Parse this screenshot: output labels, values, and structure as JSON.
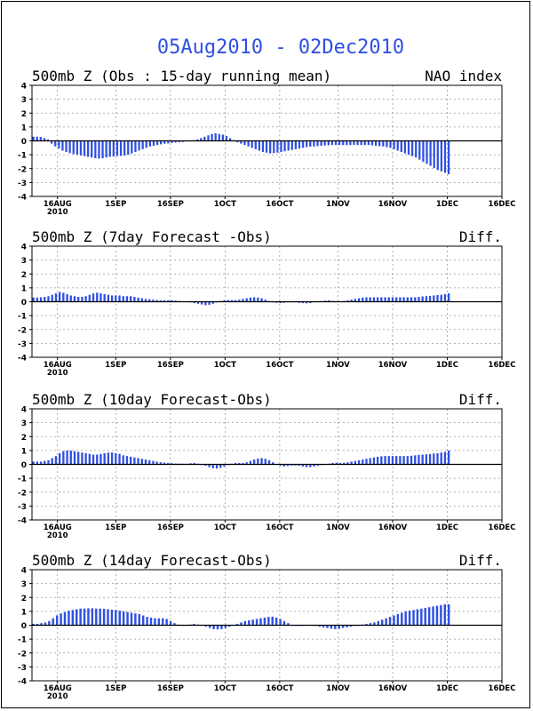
{
  "title": "05Aug2010 - 02Dec2010",
  "colors": {
    "bar": "#3050e0",
    "title": "#3050e0",
    "axis": "#000000",
    "grid": "#999999"
  },
  "chart_data": [
    {
      "type": "bar",
      "title": "500mb Z (Obs : 15-day running mean)",
      "right_label": "NAO index",
      "ylim": [
        -4,
        4
      ],
      "yticks": [
        "4",
        "3",
        "2",
        "1",
        "0",
        "-1",
        "-2",
        "-3",
        "-4"
      ],
      "xticks": [
        "16AUG",
        "1SEP",
        "16SEP",
        "1OCT",
        "16OCT",
        "1NOV",
        "16NOV",
        "1DEC",
        "16DEC"
      ],
      "xtick_year": "2010",
      "grid": true,
      "values": [
        0.3,
        0.3,
        0.28,
        0.2,
        0.1,
        -0.2,
        -0.4,
        -0.55,
        -0.7,
        -0.8,
        -0.88,
        -0.95,
        -1,
        -1.05,
        -1.1,
        -1.15,
        -1.2,
        -1.25,
        -1.28,
        -1.25,
        -1.2,
        -1.15,
        -1.12,
        -1.1,
        -1.08,
        -1.05,
        -1,
        -0.9,
        -0.8,
        -0.7,
        -0.6,
        -0.5,
        -0.4,
        -0.35,
        -0.3,
        -0.25,
        -0.2,
        -0.18,
        -0.15,
        -0.12,
        -0.1,
        -0.08,
        -0.05,
        0,
        0.05,
        0.1,
        0.2,
        0.3,
        0.4,
        0.5,
        0.55,
        0.5,
        0.45,
        0.35,
        0.2,
        0.05,
        -0.1,
        -0.2,
        -0.3,
        -0.4,
        -0.5,
        -0.6,
        -0.7,
        -0.8,
        -0.85,
        -0.9,
        -0.88,
        -0.85,
        -0.8,
        -0.75,
        -0.7,
        -0.65,
        -0.6,
        -0.55,
        -0.5,
        -0.45,
        -0.42,
        -0.4,
        -0.38,
        -0.35,
        -0.33,
        -0.32,
        -0.3,
        -0.3,
        -0.3,
        -0.3,
        -0.3,
        -0.3,
        -0.3,
        -0.3,
        -0.3,
        -0.3,
        -0.3,
        -0.32,
        -0.35,
        -0.38,
        -0.4,
        -0.45,
        -0.5,
        -0.6,
        -0.7,
        -0.8,
        -0.9,
        -1,
        -1.1,
        -1.2,
        -1.35,
        -1.5,
        -1.65,
        -1.8,
        -1.95,
        -2.1,
        -2.2,
        -2.3,
        -2.4
      ]
    },
    {
      "type": "bar",
      "title": "500mb Z (7day Forecast -Obs)",
      "right_label": "Diff.",
      "ylim": [
        -4,
        4
      ],
      "yticks": [
        "4",
        "3",
        "2",
        "1",
        "0",
        "-1",
        "-2",
        "-3",
        "-4"
      ],
      "xticks": [
        "16AUG",
        "1SEP",
        "16SEP",
        "1OCT",
        "16OCT",
        "1NOV",
        "16NOV",
        "1DEC",
        "16DEC"
      ],
      "xtick_year": "2010",
      "grid": true,
      "values": [
        0.3,
        0.3,
        0.32,
        0.35,
        0.4,
        0.5,
        0.6,
        0.7,
        0.65,
        0.55,
        0.45,
        0.4,
        0.35,
        0.35,
        0.4,
        0.5,
        0.6,
        0.65,
        0.6,
        0.55,
        0.5,
        0.45,
        0.45,
        0.45,
        0.4,
        0.4,
        0.4,
        0.35,
        0.3,
        0.25,
        0.2,
        0.18,
        0.15,
        0.12,
        0.1,
        0.1,
        0.1,
        0.1,
        0.08,
        0.05,
        0.02,
        -0.02,
        -0.05,
        -0.1,
        -0.15,
        -0.2,
        -0.25,
        -0.22,
        -0.15,
        -0.05,
        0.05,
        0.1,
        0.12,
        0.12,
        0.12,
        0.15,
        0.2,
        0.25,
        0.3,
        0.32,
        0.3,
        0.25,
        0.15,
        0.05,
        -0.05,
        -0.08,
        -0.1,
        -0.08,
        -0.05,
        -0.05,
        -0.05,
        -0.08,
        -0.1,
        -0.12,
        -0.1,
        -0.05,
        0,
        0.05,
        0.08,
        0.1,
        0.05,
        0,
        0.02,
        0.05,
        0.1,
        0.15,
        0.2,
        0.25,
        0.3,
        0.32,
        0.32,
        0.32,
        0.32,
        0.32,
        0.32,
        0.32,
        0.32,
        0.32,
        0.32,
        0.32,
        0.32,
        0.32,
        0.32,
        0.35,
        0.38,
        0.4,
        0.42,
        0.45,
        0.48,
        0.5,
        0.55,
        0.6
      ]
    },
    {
      "type": "bar",
      "title": "500mb Z (10day Forecast-Obs)",
      "right_label": "Diff.",
      "ylim": [
        -4,
        4
      ],
      "yticks": [
        "4",
        "3",
        "2",
        "1",
        "0",
        "-1",
        "-2",
        "-3",
        "-4"
      ],
      "xticks": [
        "16AUG",
        "1SEP",
        "16SEP",
        "1OCT",
        "16OCT",
        "1NOV",
        "16NOV",
        "1DEC",
        "16DEC"
      ],
      "xtick_year": "2010",
      "grid": true,
      "values": [
        0.2,
        0.2,
        0.2,
        0.25,
        0.3,
        0.45,
        0.6,
        0.8,
        0.95,
        1,
        1,
        0.95,
        0.9,
        0.85,
        0.8,
        0.75,
        0.7,
        0.7,
        0.75,
        0.8,
        0.85,
        0.85,
        0.8,
        0.75,
        0.65,
        0.6,
        0.55,
        0.5,
        0.45,
        0.4,
        0.35,
        0.3,
        0.25,
        0.2,
        0.15,
        0.12,
        0.1,
        0.08,
        0.06,
        0.05,
        0.05,
        0.05,
        0.08,
        0.1,
        0.05,
        0,
        -0.1,
        -0.2,
        -0.28,
        -0.3,
        -0.25,
        -0.15,
        -0.05,
        0.05,
        0.1,
        0.1,
        0.1,
        0.15,
        0.25,
        0.35,
        0.42,
        0.45,
        0.4,
        0.3,
        0.15,
        0,
        -0.1,
        -0.15,
        -0.12,
        -0.08,
        -0.08,
        -0.1,
        -0.15,
        -0.2,
        -0.2,
        -0.15,
        -0.1,
        -0.05,
        0,
        0.05,
        0.1,
        0.12,
        0.1,
        0.12,
        0.15,
        0.2,
        0.25,
        0.3,
        0.35,
        0.4,
        0.45,
        0.5,
        0.55,
        0.58,
        0.6,
        0.6,
        0.6,
        0.6,
        0.6,
        0.6,
        0.6,
        0.62,
        0.65,
        0.68,
        0.7,
        0.72,
        0.75,
        0.78,
        0.8,
        0.85,
        0.9,
        1
      ]
    },
    {
      "type": "bar",
      "title": "500mb Z (14day Forecast-Obs)",
      "right_label": "Diff.",
      "ylim": [
        -4,
        4
      ],
      "yticks": [
        "4",
        "3",
        "2",
        "1",
        "0",
        "-1",
        "-2",
        "-3",
        "-4"
      ],
      "xticks": [
        "16AUG",
        "1SEP",
        "16SEP",
        "1OCT",
        "16OCT",
        "1NOV",
        "16NOV",
        "1DEC",
        "16DEC"
      ],
      "xtick_year": "2010",
      "grid": true,
      "values": [
        0.1,
        0.1,
        0.15,
        0.2,
        0.3,
        0.5,
        0.7,
        0.85,
        0.95,
        1.05,
        1.1,
        1.15,
        1.2,
        1.2,
        1.22,
        1.22,
        1.2,
        1.2,
        1.18,
        1.15,
        1.12,
        1.1,
        1.05,
        1,
        0.95,
        0.9,
        0.85,
        0.8,
        0.7,
        0.6,
        0.55,
        0.5,
        0.5,
        0.5,
        0.45,
        0.3,
        0.15,
        0.05,
        0,
        0,
        0.05,
        0.1,
        0.05,
        0,
        -0.1,
        -0.2,
        -0.28,
        -0.3,
        -0.28,
        -0.2,
        -0.1,
        0,
        0.1,
        0.2,
        0.3,
        0.35,
        0.4,
        0.45,
        0.5,
        0.55,
        0.6,
        0.62,
        0.55,
        0.45,
        0.3,
        0.15,
        0,
        -0.05,
        -0.05,
        0,
        0.02,
        0,
        -0.05,
        -0.1,
        -0.15,
        -0.2,
        -0.25,
        -0.28,
        -0.25,
        -0.2,
        -0.15,
        -0.1,
        -0.05,
        0,
        0.05,
        0.1,
        0.15,
        0.2,
        0.3,
        0.4,
        0.5,
        0.6,
        0.7,
        0.8,
        0.9,
        1,
        1.05,
        1.1,
        1.15,
        1.2,
        1.25,
        1.3,
        1.35,
        1.4,
        1.45,
        1.5,
        1.5
      ]
    }
  ]
}
